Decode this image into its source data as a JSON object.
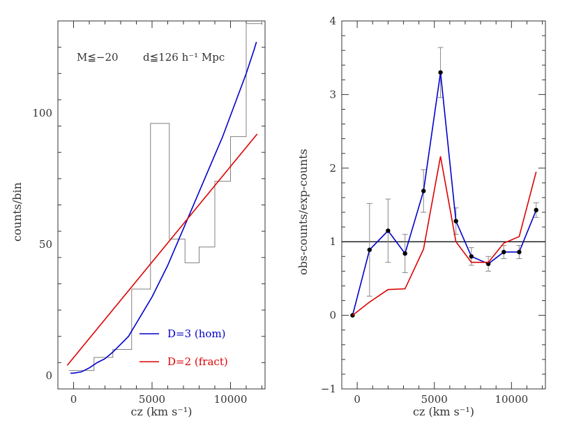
{
  "chart_data": [
    {
      "type": "line",
      "panel": "left",
      "annotation_left": "M≦−20",
      "annotation_right": "d≦126 h⁻¹ Mpc",
      "xlabel": "cz (km s⁻¹)",
      "ylabel": "counts/bin",
      "xlim": [
        -1000,
        12200
      ],
      "ylim": [
        -5,
        135
      ],
      "x_ticks": [
        0,
        5000,
        10000
      ],
      "y_ticks": [
        0,
        50,
        100
      ],
      "legend": "bottom-right",
      "histogram": {
        "name": "",
        "color": "#808080",
        "edges": [
          -300,
          1300,
          2500,
          3700,
          4900,
          6100,
          7100,
          8000,
          9000,
          10000,
          11000,
          12000
        ],
        "counts": [
          2,
          7,
          10,
          33,
          96,
          52,
          43,
          49,
          74,
          91,
          134
        ]
      },
      "series": [
        {
          "name": "D=3 (hom)",
          "color": "#0000cc",
          "x": [
            -200,
            0,
            500,
            1000,
            1500,
            2000,
            2500,
            3000,
            3500,
            4000,
            4500,
            5000,
            5500,
            6000,
            6500,
            7000,
            7500,
            8000,
            8500,
            9000,
            9500,
            10000,
            10500,
            11000,
            11500,
            11650
          ],
          "y": [
            1,
            1,
            1.5,
            3,
            5,
            6.5,
            9,
            12,
            15,
            20,
            25,
            30,
            36,
            42,
            49,
            56,
            63,
            70,
            77,
            84,
            91,
            99,
            107,
            115,
            124,
            127
          ]
        },
        {
          "name": "D=2 (fract)",
          "color": "#dd0000",
          "x": [
            -400,
            11700
          ],
          "y": [
            4,
            92
          ]
        }
      ]
    },
    {
      "type": "line",
      "panel": "right",
      "xlabel": "cz (km s⁻¹)",
      "ylabel": "obs-counts/exp-counts",
      "xlim": [
        -1000,
        12200
      ],
      "ylim": [
        -1,
        4
      ],
      "x_ticks": [
        0,
        5000,
        10000
      ],
      "y_ticks": [
        -1,
        0,
        1,
        2,
        3,
        4
      ],
      "reference_line": 1,
      "series": [
        {
          "name": "",
          "color": "#0000cc",
          "markers": true,
          "x": [
            -300,
            800,
            2000,
            3100,
            4300,
            5400,
            6400,
            7400,
            8500,
            9500,
            10500,
            11600
          ],
          "y": [
            0,
            0.89,
            1.15,
            0.84,
            1.69,
            3.3,
            1.28,
            0.8,
            0.7,
            0.86,
            0.86,
            1.43
          ],
          "err": [
            0,
            0.63,
            0.43,
            0.26,
            0.29,
            0.34,
            0.18,
            0.12,
            0.1,
            0.09,
            0.09,
            0.1
          ]
        },
        {
          "name": "",
          "color": "#dd0000",
          "markers": false,
          "x": [
            -300,
            800,
            2000,
            3100,
            4300,
            5400,
            6400,
            7400,
            8500,
            9500,
            10500,
            11600
          ],
          "y": [
            0,
            0.18,
            0.35,
            0.36,
            0.9,
            2.16,
            1.0,
            0.72,
            0.72,
            0.98,
            1.07,
            1.95
          ]
        }
      ]
    }
  ]
}
